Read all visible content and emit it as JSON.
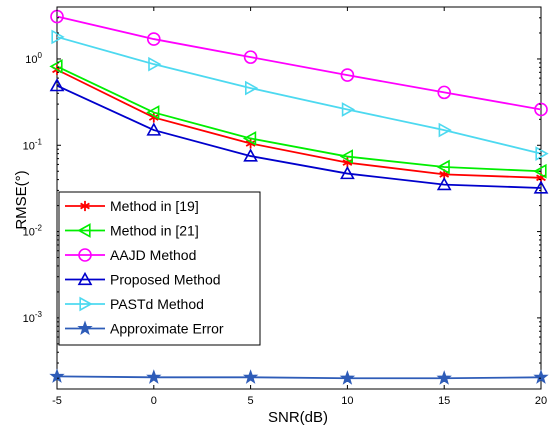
{
  "chart_data": {
    "type": "line",
    "xlabel": "SNR(dB)",
    "ylabel": "RMSE(°)",
    "x": [
      -5,
      0,
      5,
      10,
      15,
      20
    ],
    "xlim": [
      -5,
      20
    ],
    "ylim": [
      0.00015,
      4
    ],
    "yscale": "log",
    "xticks": [
      "-5",
      "0",
      "5",
      "10",
      "15",
      "20"
    ],
    "yticks": [
      {
        "value": 1,
        "base": "10",
        "exp": "0"
      },
      {
        "value": 0.1,
        "base": "10",
        "exp": "-1"
      },
      {
        "value": 0.01,
        "base": "10",
        "exp": "-2"
      },
      {
        "value": 0.001,
        "base": "10",
        "exp": "-3"
      }
    ],
    "legend_position": "lower-left",
    "series": [
      {
        "name": "Method in [19]",
        "color": "#ff0000",
        "marker": "asterisk",
        "values": [
          0.75,
          0.21,
          0.105,
          0.063,
          0.046,
          0.042
        ]
      },
      {
        "name": "Method in [21]",
        "color": "#00ee00",
        "marker": "triangle-left",
        "values": [
          0.82,
          0.24,
          0.12,
          0.074,
          0.056,
          0.05
        ]
      },
      {
        "name": "AAJD Method",
        "color": "#ff00ff",
        "marker": "circle",
        "values": [
          3.1,
          1.7,
          1.05,
          0.65,
          0.41,
          0.26
        ]
      },
      {
        "name": "Proposed Method",
        "color": "#0000cc",
        "marker": "triangle-up",
        "values": [
          0.49,
          0.15,
          0.075,
          0.047,
          0.035,
          0.032
        ]
      },
      {
        "name": "PASTd Method",
        "color": "#4dd9f0",
        "marker": "triangle-right",
        "values": [
          1.8,
          0.87,
          0.46,
          0.26,
          0.15,
          0.08
        ]
      },
      {
        "name": "Approximate Error",
        "color": "#2e5cb8",
        "marker": "star",
        "values": [
          0.00021,
          0.000205,
          0.000205,
          0.0002,
          0.0002,
          0.000205
        ]
      }
    ]
  }
}
